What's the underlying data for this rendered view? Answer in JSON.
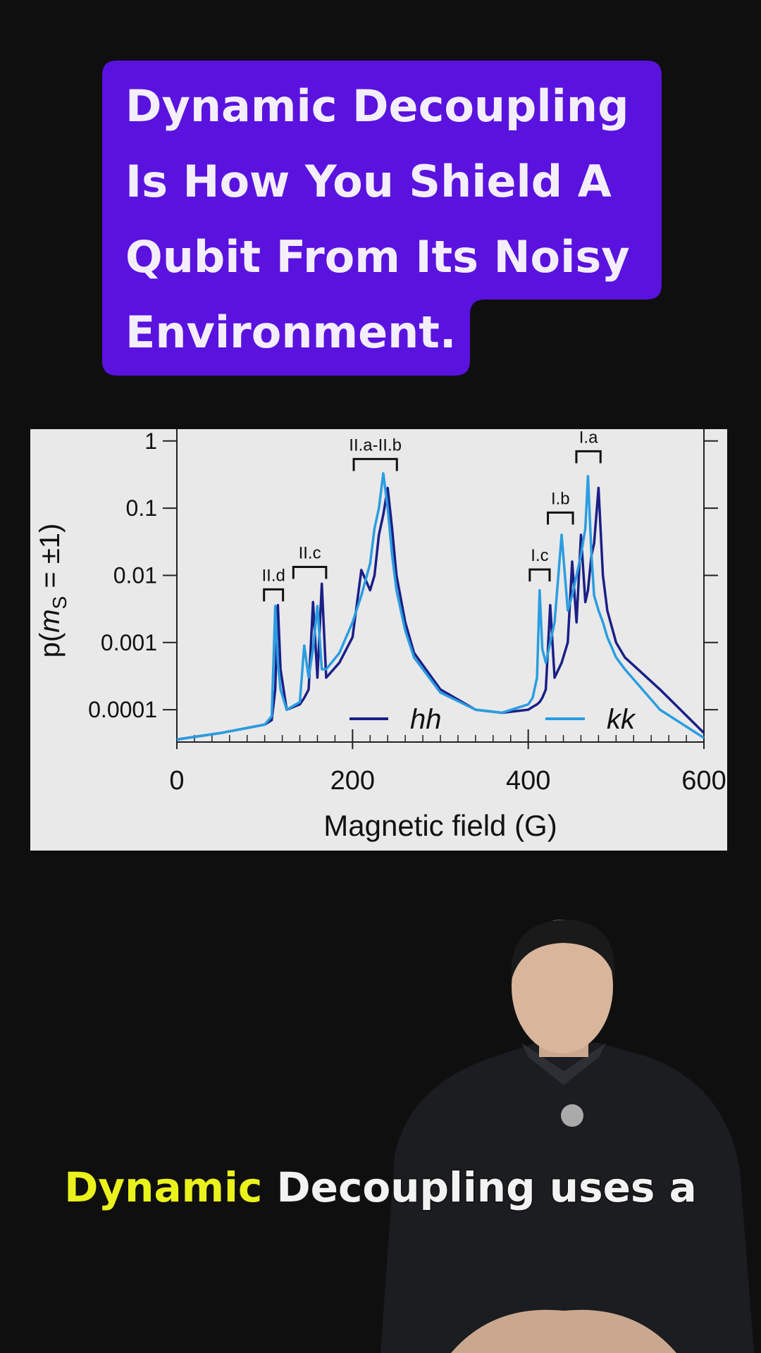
{
  "headline": {
    "lines": [
      "Dynamic Decoupling",
      "Is How You Shield A",
      "Qubit From Its Noisy",
      "Environment."
    ]
  },
  "chart_data": {
    "type": "line",
    "log_y": true,
    "ylabel": {
      "pre": "p(",
      "var": "m",
      "sub": "S",
      "post": " = ±1)"
    },
    "xlabel": "Magnetic field (G)",
    "xlim": [
      0,
      600
    ],
    "xticks": [
      0,
      200,
      400,
      600
    ],
    "ylim": [
      3.3e-05,
      1.5
    ],
    "yticks": [
      1,
      0.1,
      0.01,
      0.001,
      0.0001
    ],
    "annotations": [
      "II.d",
      "II.c",
      "II.a-II.b",
      "I.c",
      "I.b",
      "I.a"
    ],
    "x": [
      0,
      50,
      100,
      108,
      112,
      115,
      118,
      125,
      140,
      145,
      150,
      155,
      160,
      165,
      170,
      185,
      200,
      210,
      220,
      225,
      230,
      235,
      240,
      245,
      250,
      260,
      270,
      300,
      340,
      370,
      400,
      405,
      410,
      413,
      416,
      420,
      425,
      430,
      438,
      445,
      450,
      455,
      460,
      465,
      468,
      472,
      475,
      480,
      485,
      490,
      500,
      510,
      550,
      600
    ],
    "series": [
      {
        "name": "hh",
        "color": "#1b1f86",
        "values": [
          3.6e-05,
          4.5e-05,
          6e-05,
          7e-05,
          0.0002,
          0.0036,
          0.0004,
          0.0001,
          0.00012,
          0.00015,
          0.0002,
          0.004,
          0.0003,
          0.0075,
          0.0003,
          0.0005,
          0.0012,
          0.012,
          0.006,
          0.01,
          0.04,
          0.08,
          0.2,
          0.05,
          0.01,
          0.002,
          0.0007,
          0.0002,
          0.0001,
          9e-05,
          0.0001,
          0.00011,
          0.00012,
          0.00013,
          0.00015,
          0.0002,
          0.0036,
          0.0003,
          0.0005,
          0.001,
          0.016,
          0.002,
          0.04,
          0.004,
          0.006,
          0.02,
          0.03,
          0.2,
          0.01,
          0.003,
          0.001,
          0.0006,
          0.0002,
          4.5e-05
        ]
      },
      {
        "name": "kk",
        "color": "#2a9de0",
        "values": [
          3.6e-05,
          4.5e-05,
          6e-05,
          8e-05,
          0.0035,
          0.0005,
          0.0002,
          0.0001,
          0.00013,
          0.0009,
          0.0003,
          0.0008,
          0.0035,
          0.0004,
          0.0004,
          0.0007,
          0.002,
          0.005,
          0.015,
          0.05,
          0.1,
          0.33,
          0.1,
          0.02,
          0.006,
          0.0015,
          0.0006,
          0.00018,
          0.0001,
          9e-05,
          0.00012,
          0.00015,
          0.0003,
          0.006,
          0.0008,
          0.0005,
          0.001,
          0.002,
          0.04,
          0.003,
          0.005,
          0.01,
          0.02,
          0.05,
          0.3,
          0.02,
          0.005,
          0.003,
          0.002,
          0.0012,
          0.0006,
          0.0004,
          0.0001,
          3.8e-05
        ]
      }
    ]
  },
  "caption": {
    "highlight": "Dynamic",
    "rest": "Decoupling uses a"
  }
}
